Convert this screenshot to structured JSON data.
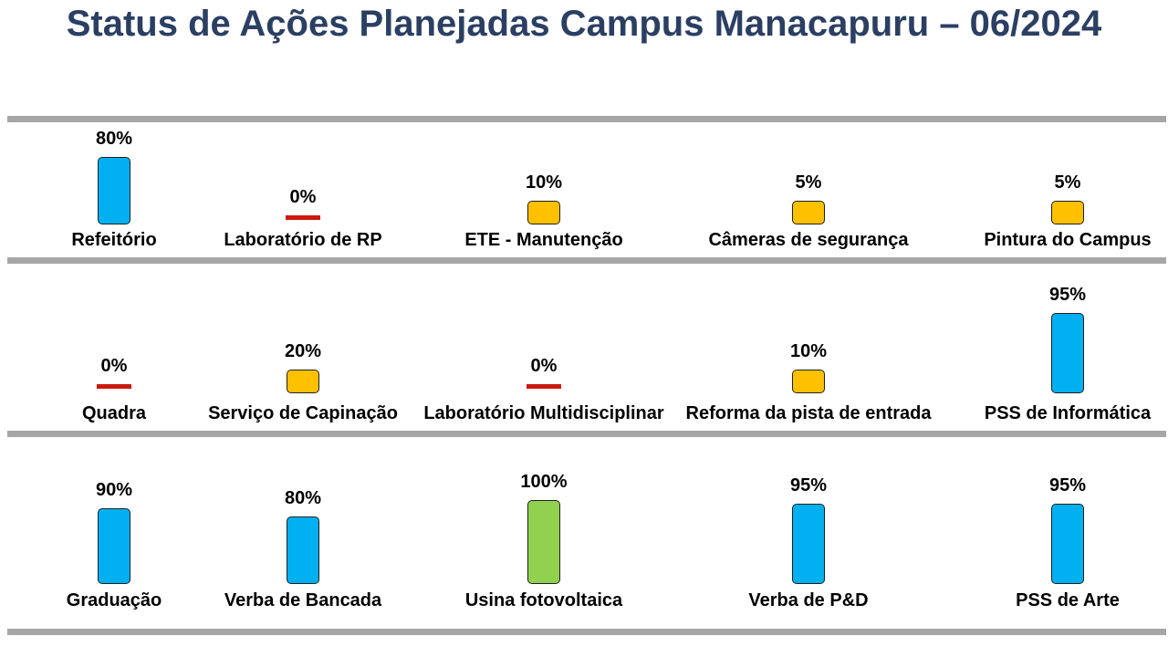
{
  "title": "Status de Ações Planejadas Campus Manacapuru – 06/2024",
  "colors": {
    "divider": "#a6a6a6",
    "title": "#2b3f63",
    "status_zero": "#cc1a10",
    "status_low": "#ffc000",
    "status_high": "#00b0f0",
    "status_complete": "#92d050"
  },
  "chart_data": {
    "type": "bar",
    "unit": "%",
    "max": 100,
    "rows": [
      {
        "items": [
          {
            "label": "Refeitório",
            "value": 80,
            "value_label": "80%"
          },
          {
            "label": "Laboratório de RP",
            "value": 0,
            "value_label": "0%"
          },
          {
            "label": "ETE - Manutenção",
            "value": 10,
            "value_label": "10%"
          },
          {
            "label": "Câmeras de segurança",
            "value": 5,
            "value_label": "5%"
          },
          {
            "label": "Pintura do Campus",
            "value": 5,
            "value_label": "5%"
          }
        ]
      },
      {
        "items": [
          {
            "label": "Quadra",
            "value": 0,
            "value_label": "0%"
          },
          {
            "label": "Serviço de Capinação",
            "value": 20,
            "value_label": "20%"
          },
          {
            "label": "Laboratório Multidisciplinar",
            "value": 0,
            "value_label": "0%"
          },
          {
            "label": "Reforma da pista de entrada",
            "value": 10,
            "value_label": "10%"
          },
          {
            "label": "PSS de Informática",
            "value": 95,
            "value_label": "95%"
          }
        ]
      },
      {
        "items": [
          {
            "label": "Graduação",
            "value": 90,
            "value_label": "90%"
          },
          {
            "label": "Verba de Bancada",
            "value": 80,
            "value_label": "80%"
          },
          {
            "label": "Usina fotovoltaica",
            "value": 100,
            "value_label": "100%"
          },
          {
            "label": "Verba de P&D",
            "value": 95,
            "value_label": "95%"
          },
          {
            "label": "PSS de Arte",
            "value": 95,
            "value_label": "95%"
          }
        ]
      }
    ]
  }
}
